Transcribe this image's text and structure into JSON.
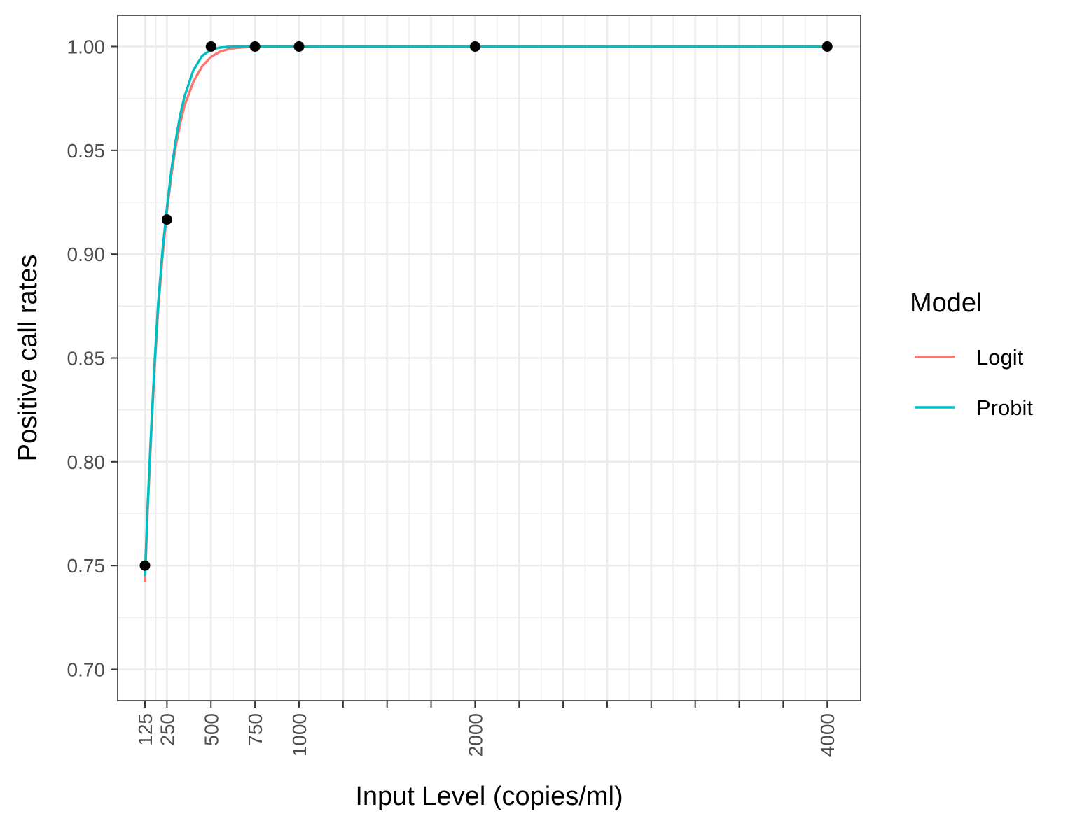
{
  "chart_data": {
    "type": "line",
    "title": "",
    "xlabel": "Input Level (copies/ml)",
    "ylabel": "Positive call rates",
    "xlim": [
      -30,
      4190
    ],
    "ylim": [
      0.685,
      1.015
    ],
    "x_ticks_labeled": [
      125,
      250,
      500,
      750,
      1000,
      2000,
      4000
    ],
    "x_ticks_unlabeled": [
      1250,
      1500,
      1750,
      2250,
      2500,
      2750,
      3000,
      3250,
      3500,
      3750
    ],
    "x_tick_labels": [
      "125",
      "250",
      "500",
      "750",
      "1000",
      "2000",
      "4000"
    ],
    "y_ticks": [
      0.7,
      0.75,
      0.8,
      0.85,
      0.9,
      0.95,
      1.0
    ],
    "y_tick_labels": [
      "0.70",
      "0.75",
      "0.80",
      "0.85",
      "0.90",
      "0.95",
      "1.00"
    ],
    "grid": true,
    "legend": {
      "title": "Model",
      "position": "right",
      "entries": [
        "Logit",
        "Probit"
      ]
    },
    "observed_points": {
      "x": [
        125,
        250,
        500,
        750,
        1000,
        2000,
        4000
      ],
      "y": [
        0.75,
        0.9167,
        1.0,
        1.0,
        1.0,
        1.0,
        1.0
      ]
    },
    "series": [
      {
        "name": "Logit",
        "color": "#F8766D",
        "x": [
          125,
          140,
          160,
          180,
          200,
          225,
          250,
          275,
          300,
          325,
          350,
          400,
          450,
          500,
          550,
          600,
          650,
          700,
          750,
          1000,
          2000,
          4000
        ],
        "y": [
          0.742,
          0.775,
          0.812,
          0.845,
          0.873,
          0.899,
          0.9205,
          0.938,
          0.952,
          0.963,
          0.9715,
          0.983,
          0.9905,
          0.995,
          0.9975,
          0.9988,
          0.9994,
          0.9997,
          0.9999,
          1.0,
          1.0,
          1.0
        ]
      },
      {
        "name": "Probit",
        "color": "#00BFC4",
        "x": [
          125,
          140,
          160,
          180,
          200,
          225,
          250,
          275,
          300,
          325,
          350,
          400,
          450,
          500,
          550,
          600,
          650,
          700,
          750,
          1000,
          2000,
          4000
        ],
        "y": [
          0.745,
          0.778,
          0.815,
          0.848,
          0.876,
          0.902,
          0.9225,
          0.9405,
          0.955,
          0.967,
          0.976,
          0.9885,
          0.9955,
          0.9985,
          0.9995,
          0.9999,
          1.0,
          1.0,
          1.0,
          1.0,
          1.0,
          1.0
        ]
      }
    ]
  }
}
